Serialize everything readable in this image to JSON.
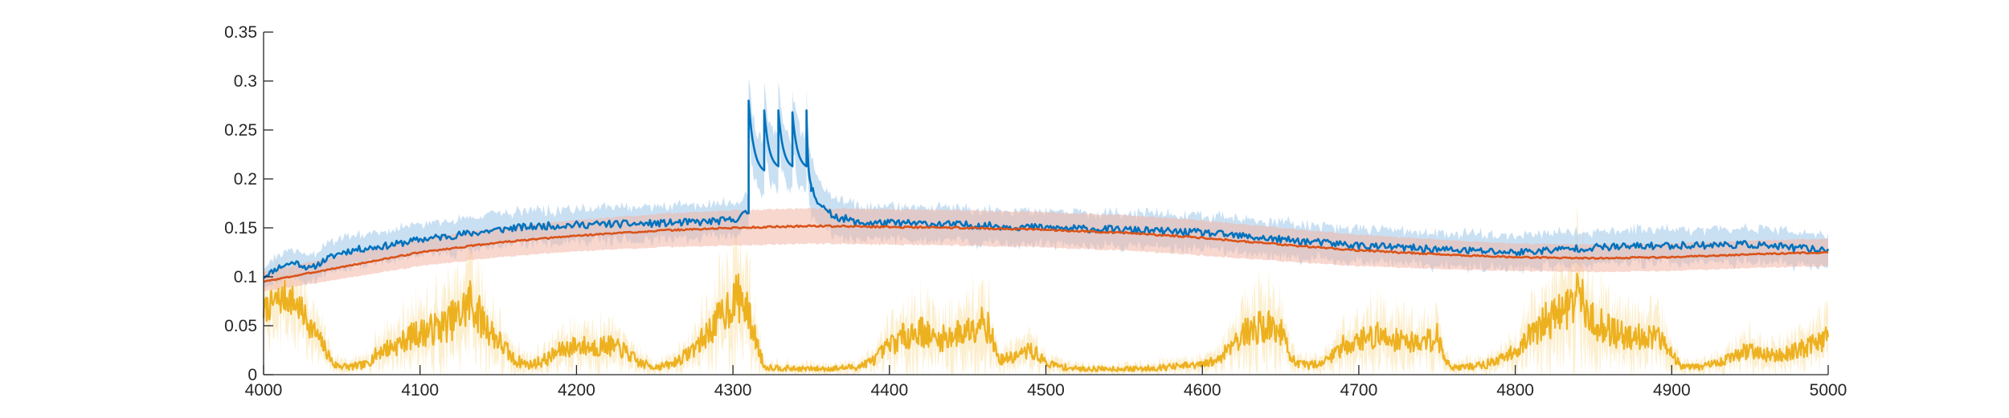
{
  "chart_data": {
    "type": "line",
    "xlim": [
      4000,
      5000
    ],
    "ylim": [
      0,
      0.35
    ],
    "xticks": [
      4000,
      4100,
      4200,
      4300,
      4400,
      4500,
      4600,
      4700,
      4800,
      4900,
      5000
    ],
    "yticks": [
      0,
      0.05,
      0.1,
      0.15,
      0.2,
      0.25,
      0.3,
      0.35
    ],
    "xtick_labels": [
      "4000",
      "4100",
      "4200",
      "4300",
      "4400",
      "4500",
      "4600",
      "4700",
      "4800",
      "4900",
      "5000"
    ],
    "ytick_labels": [
      "0",
      "0.05",
      "0.1",
      "0.15",
      "0.2",
      "0.25",
      "0.3",
      "0.35"
    ],
    "grid": false,
    "series": [
      {
        "color": "#0072BD",
        "band_color": "#9CC6EA",
        "x": [
          4000,
          4010,
          4020,
          4030,
          4040,
          4050,
          4060,
          4080,
          4100,
          4120,
          4140,
          4160,
          4180,
          4200,
          4220,
          4240,
          4260,
          4280,
          4300,
          4305,
          4310
        ],
        "y": [
          0.1,
          0.11,
          0.115,
          0.108,
          0.118,
          0.125,
          0.128,
          0.132,
          0.138,
          0.142,
          0.146,
          0.15,
          0.152,
          0.153,
          0.154,
          0.154,
          0.155,
          0.156,
          0.158,
          0.162,
          0.166
        ],
        "band": [
          0.01,
          0.012,
          0.012,
          0.012,
          0.013,
          0.014,
          0.014,
          0.014,
          0.014,
          0.015,
          0.015,
          0.015,
          0.015,
          0.015,
          0.015,
          0.015,
          0.015,
          0.015,
          0.015,
          0.015,
          0.015
        ],
        "x2": [
          4350,
          4360,
          4380,
          4400,
          4450,
          4500,
          4550,
          4600,
          4650,
          4700,
          4750,
          4800,
          4850,
          4900,
          4950,
          5000
        ],
        "y2": [
          0.19,
          0.165,
          0.155,
          0.155,
          0.153,
          0.15,
          0.148,
          0.145,
          0.138,
          0.132,
          0.128,
          0.125,
          0.13,
          0.132,
          0.133,
          0.127
        ],
        "band2": [
          0.025,
          0.018,
          0.015,
          0.015,
          0.015,
          0.015,
          0.015,
          0.015,
          0.015,
          0.015,
          0.015,
          0.015,
          0.015,
          0.015,
          0.015,
          0.015
        ],
        "pulses": [
          {
            "start": 4310,
            "peak": 0.28,
            "trough": 0.205
          },
          {
            "start": 4320,
            "peak": 0.27,
            "trough": 0.21
          },
          {
            "start": 4329,
            "peak": 0.27,
            "trough": 0.21
          },
          {
            "start": 4338,
            "peak": 0.268,
            "trough": 0.21
          },
          {
            "start": 4347,
            "peak": 0.27,
            "trough": 0.19
          }
        ]
      },
      {
        "color": "#D95319",
        "band_color": "#F2B7A6",
        "x": [
          4000,
          4050,
          4100,
          4150,
          4200,
          4250,
          4300,
          4350,
          4400,
          4450,
          4500,
          4550,
          4600,
          4650,
          4700,
          4750,
          4800,
          4850,
          4900,
          4950,
          5000
        ],
        "y": [
          0.095,
          0.11,
          0.125,
          0.135,
          0.142,
          0.147,
          0.15,
          0.152,
          0.151,
          0.15,
          0.148,
          0.145,
          0.14,
          0.133,
          0.127,
          0.123,
          0.12,
          0.119,
          0.12,
          0.123,
          0.125
        ],
        "band": [
          0.01,
          0.012,
          0.014,
          0.015,
          0.016,
          0.017,
          0.018,
          0.018,
          0.018,
          0.018,
          0.018,
          0.018,
          0.018,
          0.017,
          0.016,
          0.015,
          0.014,
          0.014,
          0.014,
          0.014,
          0.014
        ]
      },
      {
        "color": "#EDB120",
        "band_color": "#F9E1A8",
        "x": [
          4000,
          4008,
          4015,
          4022,
          4030,
          4038,
          4045,
          4055,
          4065,
          4075,
          4085,
          4095,
          4105,
          4115,
          4125,
          4132,
          4140,
          4150,
          4160,
          4170,
          4180,
          4190,
          4200,
          4210,
          4220,
          4230,
          4240,
          4250,
          4260,
          4270,
          4280,
          4290,
          4300,
          4305,
          4310,
          4320,
          4340,
          4360,
          4380,
          4390,
          4400,
          4410,
          4420,
          4430,
          4440,
          4450,
          4460,
          4465,
          4470,
          4480,
          4490,
          4495,
          4500,
          4510,
          4520,
          4540,
          4560,
          4580,
          4600,
          4610,
          4620,
          4630,
          4640,
          4650,
          4655,
          4660,
          4670,
          4680,
          4690,
          4700,
          4710,
          4720,
          4730,
          4740,
          4750,
          4755,
          4760,
          4770,
          4780,
          4790,
          4800,
          4810,
          4820,
          4830,
          4840,
          4850,
          4860,
          4870,
          4880,
          4890,
          4900,
          4905,
          4910,
          4920,
          4930,
          4940,
          4950,
          4960,
          4970,
          4980,
          4990,
          5000
        ],
        "y": [
          0.065,
          0.075,
          0.08,
          0.07,
          0.05,
          0.03,
          0.01,
          0.008,
          0.01,
          0.025,
          0.03,
          0.04,
          0.045,
          0.05,
          0.06,
          0.075,
          0.055,
          0.035,
          0.015,
          0.01,
          0.015,
          0.025,
          0.03,
          0.028,
          0.03,
          0.025,
          0.012,
          0.008,
          0.01,
          0.02,
          0.035,
          0.055,
          0.075,
          0.08,
          0.06,
          0.008,
          0.006,
          0.006,
          0.008,
          0.015,
          0.03,
          0.04,
          0.045,
          0.035,
          0.04,
          0.045,
          0.06,
          0.04,
          0.015,
          0.018,
          0.025,
          0.02,
          0.012,
          0.008,
          0.006,
          0.006,
          0.006,
          0.008,
          0.01,
          0.015,
          0.035,
          0.045,
          0.05,
          0.045,
          0.025,
          0.01,
          0.01,
          0.015,
          0.03,
          0.035,
          0.04,
          0.038,
          0.035,
          0.032,
          0.04,
          0.015,
          0.008,
          0.008,
          0.01,
          0.015,
          0.025,
          0.04,
          0.055,
          0.065,
          0.08,
          0.055,
          0.045,
          0.04,
          0.04,
          0.038,
          0.025,
          0.01,
          0.008,
          0.008,
          0.012,
          0.02,
          0.025,
          0.02,
          0.02,
          0.025,
          0.03,
          0.04
        ],
        "band": [
          0.015,
          0.018,
          0.02,
          0.018,
          0.015,
          0.01,
          0.005,
          0.004,
          0.005,
          0.01,
          0.012,
          0.015,
          0.018,
          0.02,
          0.025,
          0.03,
          0.022,
          0.015,
          0.008,
          0.005,
          0.008,
          0.01,
          0.012,
          0.012,
          0.012,
          0.01,
          0.006,
          0.004,
          0.005,
          0.008,
          0.014,
          0.02,
          0.028,
          0.03,
          0.022,
          0.004,
          0.003,
          0.003,
          0.004,
          0.006,
          0.012,
          0.016,
          0.018,
          0.014,
          0.016,
          0.018,
          0.024,
          0.016,
          0.006,
          0.007,
          0.01,
          0.008,
          0.005,
          0.004,
          0.003,
          0.003,
          0.003,
          0.004,
          0.005,
          0.006,
          0.014,
          0.018,
          0.02,
          0.018,
          0.01,
          0.005,
          0.005,
          0.006,
          0.012,
          0.014,
          0.016,
          0.015,
          0.014,
          0.013,
          0.016,
          0.006,
          0.004,
          0.004,
          0.005,
          0.006,
          0.01,
          0.016,
          0.022,
          0.026,
          0.03,
          0.022,
          0.018,
          0.016,
          0.016,
          0.015,
          0.01,
          0.005,
          0.004,
          0.004,
          0.005,
          0.008,
          0.01,
          0.008,
          0.008,
          0.01,
          0.012,
          0.016
        ]
      }
    ]
  }
}
